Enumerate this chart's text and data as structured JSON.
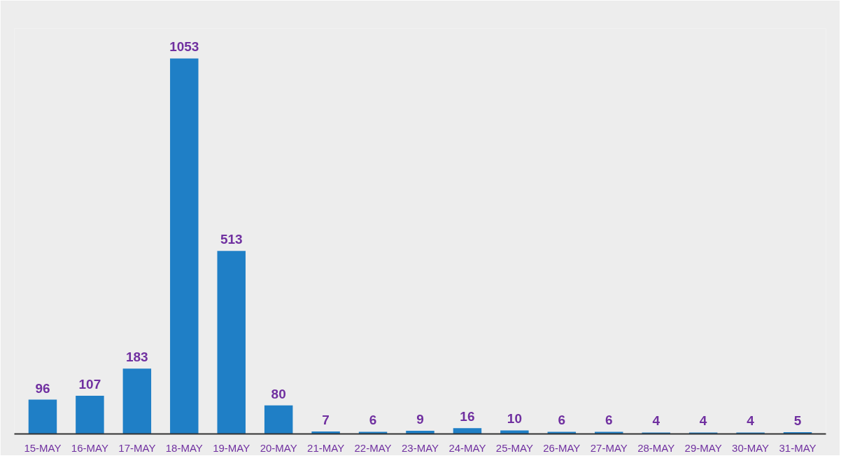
{
  "chart_data": {
    "type": "bar",
    "categories": [
      "15-MAY",
      "16-MAY",
      "17-MAY",
      "18-MAY",
      "19-MAY",
      "20-MAY",
      "21-MAY",
      "22-MAY",
      "23-MAY",
      "24-MAY",
      "25-MAY",
      "26-MAY",
      "27-MAY",
      "28-MAY",
      "29-MAY",
      "30-MAY",
      "31-MAY"
    ],
    "values": [
      96,
      107,
      183,
      1053,
      513,
      80,
      7,
      6,
      9,
      16,
      10,
      6,
      6,
      4,
      4,
      4,
      5
    ],
    "color": "#1f7fc6",
    "data_labels": true
  }
}
